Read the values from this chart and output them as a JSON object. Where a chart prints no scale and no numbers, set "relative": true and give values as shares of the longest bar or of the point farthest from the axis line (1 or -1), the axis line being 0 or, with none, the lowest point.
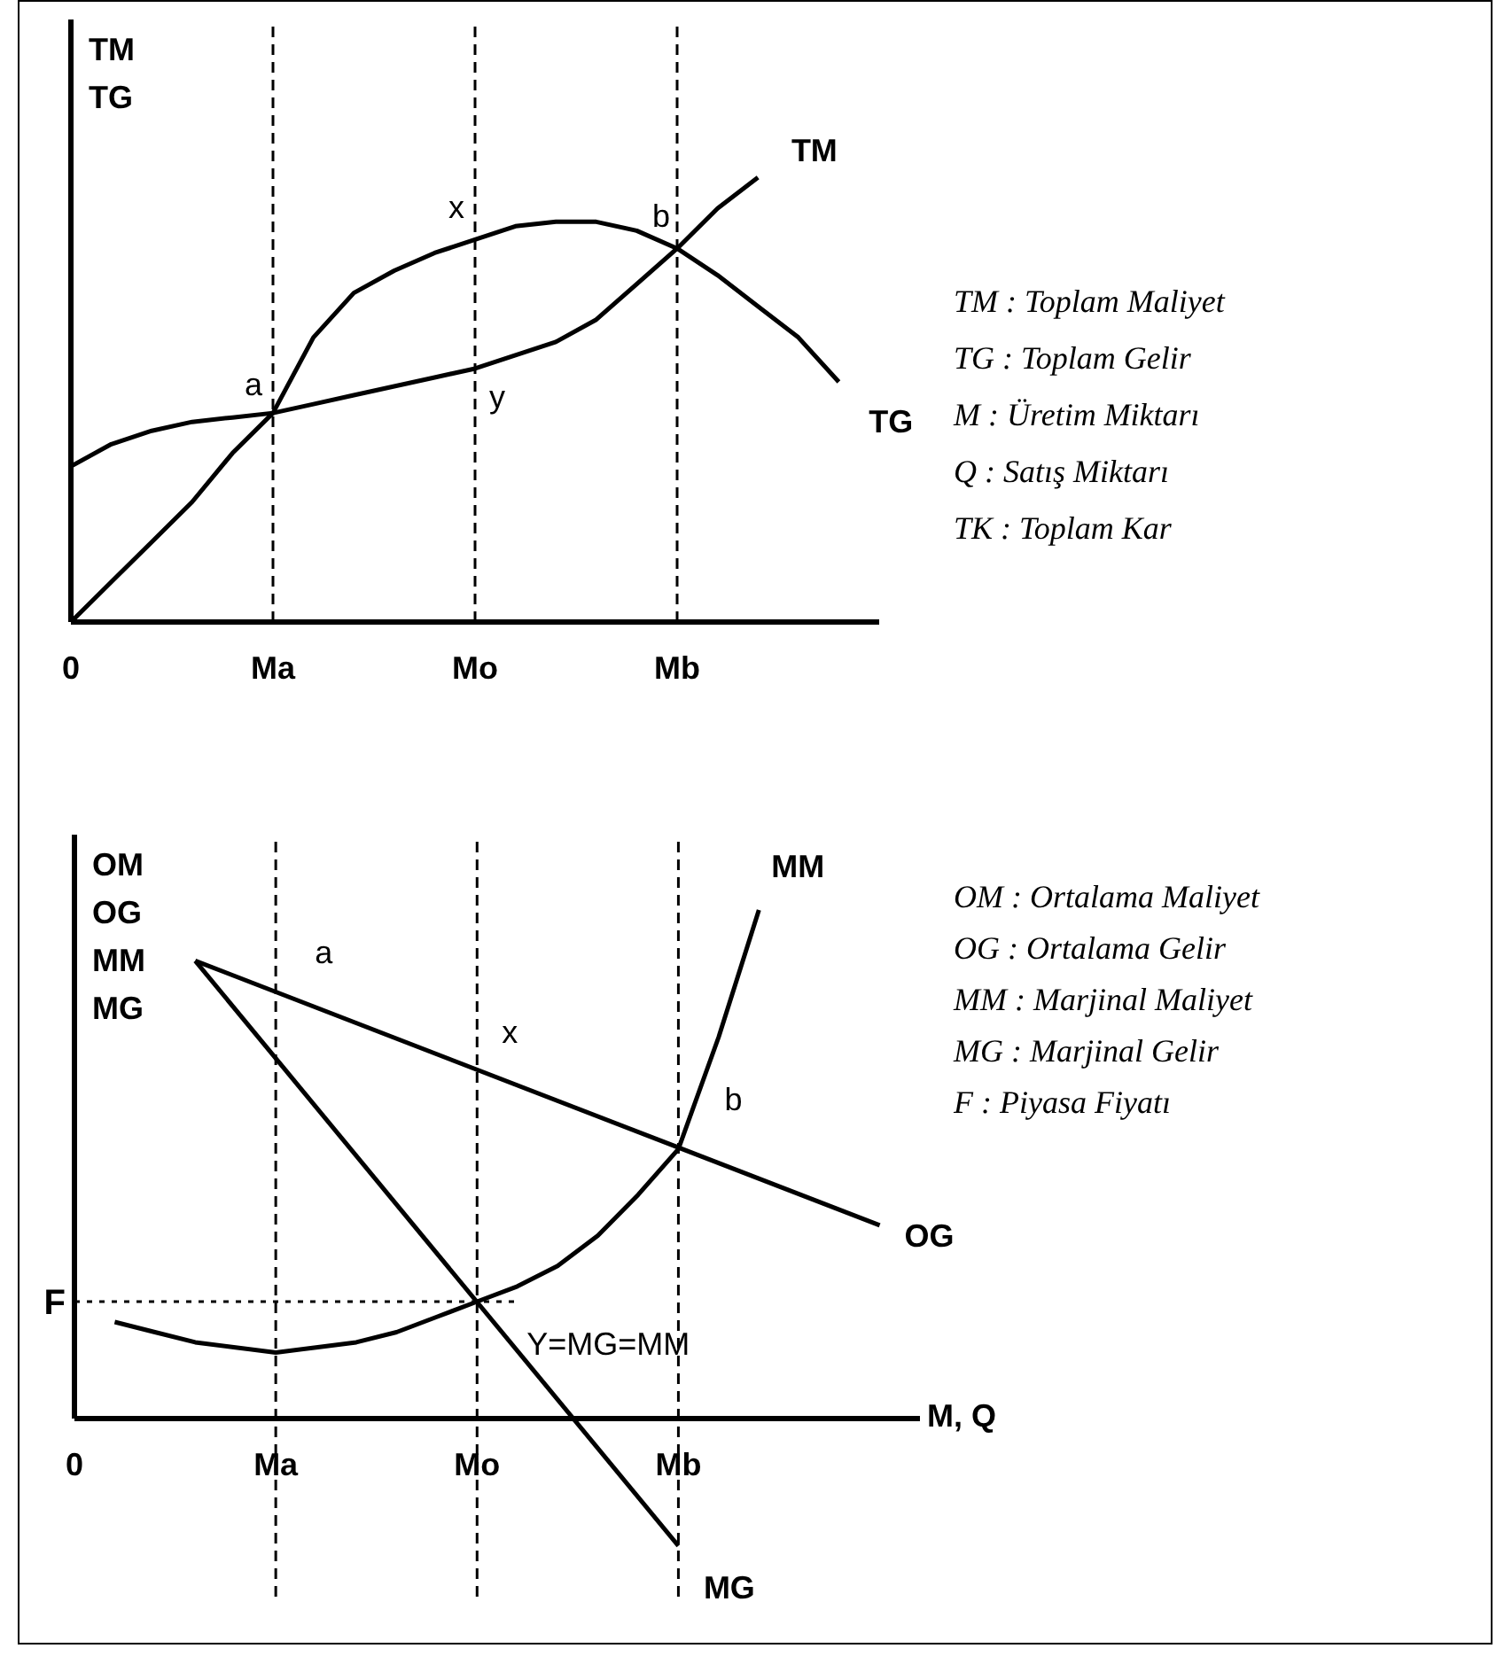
{
  "chart_data": [
    {
      "type": "line",
      "relative": true,
      "ylabel": "TM\nTG",
      "categories": [
        "0",
        null,
        null,
        null,
        null,
        "Ma",
        null,
        null,
        null,
        null,
        "Mo",
        null,
        null,
        null,
        null,
        "Mb",
        null,
        null,
        null,
        null,
        null
      ],
      "series": [
        {
          "name": "TM",
          "color": "#000000",
          "values": [
            0.35,
            0.4,
            0.43,
            0.45,
            0.46,
            0.47,
            0.49,
            0.51,
            0.53,
            0.55,
            0.57,
            0.6,
            0.63,
            0.68,
            0.76,
            0.84,
            0.93,
            1,
            null,
            null,
            null
          ]
        },
        {
          "name": "TG",
          "color": "#000000",
          "values": [
            0,
            0.09,
            0.18,
            0.27,
            0.38,
            0.47,
            0.64,
            0.74,
            0.79,
            0.83,
            0.86,
            0.89,
            0.9,
            0.9,
            0.88,
            0.84,
            0.78,
            0.71,
            0.64,
            0.54,
            null
          ]
        }
      ],
      "ref_lines": [
        {
          "axis": "x",
          "value": "Ma",
          "color": "#000000",
          "line_style": "dashed"
        },
        {
          "axis": "x",
          "value": "Mo",
          "color": "#000000",
          "line_style": "dashed"
        },
        {
          "axis": "x",
          "value": "Mb",
          "color": "#000000",
          "line_style": "dashed"
        }
      ],
      "annotations": [
        {
          "text": "a",
          "x": "Ma",
          "y": 0.47
        },
        {
          "text": "x",
          "x": "Mo",
          "y": 0.86
        },
        {
          "text": "b",
          "x": "Mb",
          "y": 0.84
        },
        {
          "text": "y",
          "x": "Mo",
          "y": 0.57
        },
        "TM : Toplam Maliyet",
        "TG : Toplam Gelir",
        "M : Üretim Miktarı",
        "Q : Satış Miktarı",
        "TK : Toplam Kar"
      ]
    },
    {
      "type": "line",
      "relative": true,
      "ylabel": "OM\nOG\nMM\nMG",
      "xlabel": "M, Q",
      "categories": [
        "0",
        null,
        null,
        null,
        null,
        "Ma",
        null,
        null,
        null,
        null,
        "Mo",
        null,
        null,
        null,
        null,
        "Mb",
        null,
        null,
        null,
        null,
        null,
        null
      ],
      "series": [
        {
          "name": "OG",
          "color": "#000000",
          "values": [
            null,
            null,
            null,
            0.9,
            null,
            null,
            null,
            null,
            null,
            null,
            null,
            null,
            null,
            null,
            null,
            null,
            null,
            null,
            null,
            null,
            0.38,
            null
          ]
        },
        {
          "name": "MG",
          "color": "#000000",
          "values": [
            null,
            null,
            null,
            0.9,
            null,
            null,
            null,
            null,
            null,
            null,
            null,
            null,
            null,
            null,
            null,
            -0.25,
            null,
            null,
            null,
            null,
            null,
            null
          ]
        },
        {
          "name": "MM",
          "color": "#000000",
          "values": [
            null,
            0.19,
            0.17,
            0.15,
            0.14,
            0.13,
            0.14,
            0.15,
            0.17,
            0.2,
            0.23,
            0.26,
            0.3,
            0.36,
            0.44,
            0.53,
            0.75,
            1,
            null,
            null,
            null,
            null
          ]
        }
      ],
      "ref_lines": [
        {
          "axis": "x",
          "value": "Ma",
          "color": "#000000",
          "line_style": "dashed"
        },
        {
          "axis": "x",
          "value": "Mo",
          "color": "#000000",
          "line_style": "dashed"
        },
        {
          "axis": "x",
          "value": "Mb",
          "color": "#000000",
          "line_style": "dashed"
        },
        {
          "axis": "y",
          "value": 0.23,
          "label": "F",
          "color": "#000000",
          "line_style": "dotted"
        }
      ],
      "annotations": [
        {
          "text": "a",
          "x": "Ma",
          "y": 0.84
        },
        {
          "text": "x",
          "x": "Mo",
          "y": 0.69
        },
        {
          "text": "b",
          "x": "Mb",
          "y": 0.53
        },
        {
          "text": "Y=MG=MM",
          "x": "Mo",
          "y": 0.23
        },
        "OM : Ortalama Maliyet",
        "OG : Ortalama Gelir",
        "MM : Marjinal Maliyet",
        "MG : Marjinal Gelir",
        "F : Piyasa Fiyatı"
      ]
    }
  ]
}
